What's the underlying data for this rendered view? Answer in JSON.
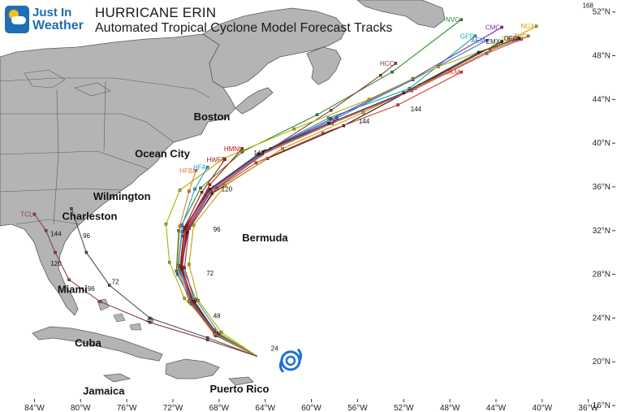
{
  "header": {
    "brand_line1": "Just In",
    "brand_line2": "Weather",
    "title": "HURRICANE ERIN",
    "subtitle": "Automated Tropical Cyclone Model Forecast Tracks"
  },
  "places": [
    {
      "name": "Boston",
      "lon": -70.2,
      "lat": 42.1
    },
    {
      "name": "Ocean City",
      "lon": -75.3,
      "lat": 38.7
    },
    {
      "name": "Wilmington",
      "lon": -78.9,
      "lat": 34.8
    },
    {
      "name": "Charleston",
      "lon": -81.6,
      "lat": 33.0
    },
    {
      "name": "Bermuda",
      "lon": -66.0,
      "lat": 31.0
    },
    {
      "name": "Miami",
      "lon": -82.0,
      "lat": 26.3
    },
    {
      "name": "Cuba",
      "lon": -80.5,
      "lat": 21.4
    },
    {
      "name": "Puerto Rico",
      "lon": -68.8,
      "lat": 17.2
    },
    {
      "name": "Jamaica",
      "lon": -79.8,
      "lat": 17.0
    }
  ],
  "axes": {
    "x_ticks": [
      "84°W",
      "80°W",
      "76°W",
      "72°W",
      "68°W",
      "64°W",
      "60°W",
      "56°W",
      "52°W",
      "48°W",
      "44°W",
      "40°W",
      "36°W"
    ],
    "y_ticks": [
      "52°N",
      "48°N",
      "44°N",
      "40°N",
      "36°N",
      "32°N",
      "28°N",
      "24°N",
      "20°N",
      "16°N"
    ],
    "lon_range": [
      -86,
      -34.5
    ],
    "lat_range": [
      16,
      52.5
    ]
  },
  "storm": {
    "name": "HURRICANE ERIN",
    "lon": -61.8,
    "lat": 20.1,
    "icon": "hurricane-icon"
  },
  "colors": {
    "ocean": "#ffffff",
    "land": "#b4b4b4",
    "border": "#5a5a5a",
    "brand": "#1e6fb5",
    "storm_icon": "#1f6fd6"
  },
  "chart_data": {
    "type": "map-tracks",
    "models": [
      {
        "name": "NVGM",
        "label": "NVG",
        "color": "#2a8a2a",
        "points": [
          [
            -64.7,
            20.5
          ],
          [
            -68.3,
            22.4
          ],
          [
            -70.3,
            25.2
          ],
          [
            -71.7,
            28.3
          ],
          [
            -71.5,
            32.0
          ],
          [
            -69.6,
            35.9
          ],
          [
            -66.0,
            39.2
          ],
          [
            -59.5,
            42.6
          ],
          [
            -53.0,
            46.5
          ],
          [
            -47.0,
            51.3
          ]
        ]
      },
      {
        "name": "GFSI",
        "label": "GFS",
        "color": "#1ba0a0",
        "points": [
          [
            -64.7,
            20.5
          ],
          [
            -68.0,
            22.6
          ],
          [
            -70.0,
            25.7
          ],
          [
            -71.2,
            28.7
          ],
          [
            -70.7,
            32.4
          ],
          [
            -68.4,
            36.0
          ],
          [
            -64.0,
            39.3
          ],
          [
            -58.5,
            42.3
          ],
          [
            -51.5,
            45.0
          ],
          [
            -45.8,
            49.8
          ]
        ]
      },
      {
        "name": "CMC",
        "label": "CMC",
        "color": "#7030a0",
        "points": [
          [
            -64.7,
            20.5
          ],
          [
            -68.1,
            22.5
          ],
          [
            -70.5,
            25.4
          ],
          [
            -71.3,
            28.7
          ],
          [
            -70.6,
            32.3
          ],
          [
            -68.5,
            35.9
          ],
          [
            -64.2,
            39.2
          ],
          [
            -58.3,
            42.2
          ],
          [
            -51.2,
            45.9
          ],
          [
            -43.5,
            50.6
          ]
        ]
      },
      {
        "name": "AEMI",
        "label": "AEM",
        "color": "#3070c0",
        "points": [
          [
            -64.7,
            20.5
          ],
          [
            -68.3,
            22.5
          ],
          [
            -70.2,
            25.1
          ],
          [
            -71.6,
            28.0
          ],
          [
            -71.2,
            31.9
          ],
          [
            -69.0,
            35.6
          ],
          [
            -64.5,
            39.0
          ],
          [
            -57.8,
            42.3
          ],
          [
            -51.2,
            45.8
          ],
          [
            -44.8,
            49.4
          ]
        ]
      },
      {
        "name": "EMXI",
        "label": "EMX",
        "color": "#1a1a1a",
        "points": [
          [
            -64.7,
            20.5
          ],
          [
            -68.4,
            22.6
          ],
          [
            -70.3,
            25.3
          ],
          [
            -71.3,
            28.2
          ],
          [
            -70.8,
            31.8
          ],
          [
            -68.6,
            35.4
          ],
          [
            -63.8,
            38.6
          ],
          [
            -57.2,
            41.6
          ],
          [
            -50.6,
            45.3
          ],
          [
            -43.5,
            49.3
          ]
        ]
      },
      {
        "name": "NGX",
        "label": "NGX",
        "color": "#c8a000",
        "points": [
          [
            -64.7,
            20.5
          ],
          [
            -67.8,
            22.7
          ],
          [
            -69.8,
            25.6
          ],
          [
            -70.6,
            28.9
          ],
          [
            -70.2,
            32.5
          ],
          [
            -67.5,
            36.1
          ],
          [
            -62.5,
            39.5
          ],
          [
            -55.5,
            42.8
          ],
          [
            -48.0,
            46.6
          ],
          [
            -40.5,
            50.7
          ]
        ]
      },
      {
        "name": "HCCA",
        "label": "HCC",
        "color": "#8b3a3a",
        "points": [
          [
            -64.7,
            20.5
          ],
          [
            -68.2,
            22.5
          ],
          [
            -70.1,
            25.5
          ],
          [
            -71.0,
            28.6
          ],
          [
            -70.6,
            32.2
          ],
          [
            -68.2,
            35.9
          ],
          [
            -63.5,
            39.5
          ],
          [
            -58.3,
            43.0
          ],
          [
            -54.0,
            46.2
          ],
          [
            -52.7,
            47.3
          ]
        ]
      },
      {
        "name": "UKX",
        "label": "UKX",
        "color": "#b0b000",
        "points": [
          [
            -64.7,
            20.5
          ],
          [
            -68.4,
            22.9
          ],
          [
            -71.0,
            25.8
          ],
          [
            -72.3,
            29.1
          ],
          [
            -72.6,
            32.6
          ],
          [
            -71.4,
            35.7
          ],
          [
            -67.6,
            38.6
          ],
          [
            -61.5,
            41.3
          ],
          [
            -55.0,
            44.0
          ],
          [
            -49.0,
            47.0
          ],
          [
            -42.2,
            49.6
          ]
        ]
      },
      {
        "name": "UKM",
        "label": "UKM",
        "color": "#d04030",
        "points": [
          [
            -64.7,
            20.5
          ],
          [
            -68.0,
            22.4
          ],
          [
            -70.0,
            25.0
          ],
          [
            -71.2,
            27.9
          ],
          [
            -71.1,
            31.5
          ],
          [
            -69.1,
            35.2
          ],
          [
            -64.8,
            38.2
          ],
          [
            -59.0,
            40.9
          ],
          [
            -52.5,
            43.5
          ],
          [
            -47.0,
            46.5
          ]
        ]
      },
      {
        "name": "TVCA",
        "label": "TVC",
        "color": "#e07020",
        "points": [
          [
            -64.7,
            20.5
          ],
          [
            -68.1,
            22.5
          ],
          [
            -70.2,
            25.4
          ],
          [
            -71.2,
            28.5
          ],
          [
            -70.9,
            32.1
          ],
          [
            -68.7,
            35.7
          ],
          [
            -64.3,
            39.0
          ],
          [
            -58.0,
            42.0
          ],
          [
            -51.0,
            45.0
          ],
          [
            -44.5,
            48.5
          ],
          [
            -41.2,
            49.8
          ]
        ]
      },
      {
        "name": "TVCN",
        "label": "TVC",
        "color": "#c05080",
        "points": [
          [
            -64.7,
            20.5
          ],
          [
            -68.2,
            22.4
          ],
          [
            -70.3,
            25.3
          ],
          [
            -71.3,
            28.4
          ],
          [
            -71.0,
            32.0
          ],
          [
            -68.8,
            35.6
          ],
          [
            -64.4,
            38.9
          ],
          [
            -58.2,
            41.8
          ],
          [
            -51.3,
            44.8
          ],
          [
            -44.8,
            48.2
          ],
          [
            -41.8,
            49.5
          ]
        ]
      },
      {
        "name": "OFCL",
        "label": "OFC",
        "color": "#303030",
        "points": [
          [
            -64.7,
            20.5
          ],
          [
            -68.2,
            22.6
          ],
          [
            -70.2,
            25.5
          ],
          [
            -71.3,
            28.6
          ],
          [
            -71.0,
            32.2
          ],
          [
            -68.8,
            35.8
          ],
          [
            -64.6,
            39.0
          ],
          [
            -58.5,
            41.8
          ],
          [
            -52.0,
            44.6
          ],
          [
            -45.5,
            48.3
          ],
          [
            -42.0,
            49.6
          ]
        ]
      },
      {
        "name": "HWFI",
        "label": "HWFI",
        "color": "#a02020",
        "points": [
          [
            -64.7,
            20.5
          ],
          [
            -68.2,
            22.4
          ],
          [
            -70.4,
            25.3
          ],
          [
            -71.4,
            28.5
          ],
          [
            -71.0,
            32.3
          ],
          [
            -69.5,
            35.5
          ],
          [
            -67.5,
            38.5
          ]
        ]
      },
      {
        "name": "HMNI",
        "label": "HMNI",
        "color": "#c01010",
        "points": [
          [
            -64.7,
            20.5
          ],
          [
            -68.1,
            22.5
          ],
          [
            -70.3,
            25.4
          ],
          [
            -71.2,
            28.6
          ],
          [
            -70.8,
            32.4
          ],
          [
            -68.8,
            36.2
          ],
          [
            -66.0,
            39.5
          ]
        ]
      },
      {
        "name": "HFAI",
        "label": "HFA",
        "color": "#2a9ad0",
        "points": [
          [
            -64.7,
            20.5
          ],
          [
            -68.3,
            22.6
          ],
          [
            -70.5,
            25.6
          ],
          [
            -71.5,
            28.8
          ],
          [
            -71.2,
            32.5
          ],
          [
            -70.1,
            35.8
          ],
          [
            -69.0,
            37.8
          ]
        ]
      },
      {
        "name": "HFBI",
        "label": "HFBI",
        "color": "#e08030",
        "points": [
          [
            -64.7,
            20.5
          ],
          [
            -68.4,
            22.5
          ],
          [
            -70.6,
            25.5
          ],
          [
            -71.6,
            28.7
          ],
          [
            -71.4,
            32.4
          ],
          [
            -70.6,
            35.6
          ],
          [
            -70.0,
            37.5
          ]
        ]
      },
      {
        "name": "CLP5",
        "label": "TCL",
        "color": "#904040",
        "points": [
          [
            -64.7,
            20.5
          ],
          [
            -69.0,
            22.0
          ],
          [
            -74.0,
            23.6
          ],
          [
            -78.3,
            25.5
          ],
          [
            -81.0,
            27.5
          ],
          [
            -82.2,
            30.0
          ],
          [
            -83.0,
            32.0
          ],
          [
            -84.0,
            33.5
          ]
        ]
      },
      {
        "name": "SHIP",
        "label": "",
        "color": "#505050",
        "points": [
          [
            -64.7,
            20.5
          ],
          [
            -69.0,
            22.2
          ],
          [
            -74.0,
            24.0
          ],
          [
            -77.5,
            27.0
          ],
          [
            -79.5,
            30.0
          ],
          [
            -80.8,
            34.0
          ]
        ]
      }
    ],
    "track_hour_labels": [
      {
        "text": "24",
        "lon": -63.5,
        "lat": 21.0
      },
      {
        "text": "48",
        "lon": -74.3,
        "lat": 23.6
      },
      {
        "text": "48",
        "lon": -68.5,
        "lat": 24.0
      },
      {
        "text": "72",
        "lon": -69.1,
        "lat": 27.9
      },
      {
        "text": "72",
        "lon": -77.3,
        "lat": 27.1
      },
      {
        "text": "96",
        "lon": -79.4,
        "lat": 26.5
      },
      {
        "text": "96",
        "lon": -79.8,
        "lat": 31.3
      },
      {
        "text": "96",
        "lon": -68.5,
        "lat": 31.9
      },
      {
        "text": "120",
        "lon": -82.6,
        "lat": 28.8
      },
      {
        "text": "120",
        "lon": -67.8,
        "lat": 35.6
      },
      {
        "text": "144",
        "lon": -82.6,
        "lat": 31.5
      },
      {
        "text": "144",
        "lon": -65.0,
        "lat": 38.9
      },
      {
        "text": "144",
        "lon": -55.9,
        "lat": 41.8
      },
      {
        "text": "144",
        "lon": -51.4,
        "lat": 42.9
      },
      {
        "text": "168",
        "lon": -36.5,
        "lat": 52.4
      }
    ],
    "x_ticks": [
      "84°W",
      "80°W",
      "76°W",
      "72°W",
      "68°W",
      "64°W",
      "60°W",
      "56°W",
      "52°W",
      "48°W",
      "44°W",
      "40°W",
      "36°W"
    ],
    "y_ticks": [
      "52°N",
      "48°N",
      "44°N",
      "40°N",
      "36°N",
      "32°N",
      "28°N",
      "24°N",
      "20°N",
      "16°N"
    ]
  }
}
